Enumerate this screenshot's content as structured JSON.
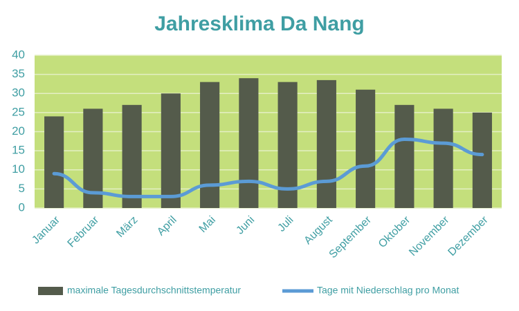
{
  "chart_data": {
    "type": "bar",
    "title": "Jahresklima Da Nang",
    "categories": [
      "Januar",
      "Februar",
      "März",
      "April",
      "Mai",
      "Juni",
      "Juli",
      "August",
      "September",
      "Oktober",
      "November",
      "Dezember"
    ],
    "series": [
      {
        "name": "maximale Tagesdurchschnittstemperatur",
        "type": "bar",
        "color": "#545b4b",
        "values": [
          24,
          26,
          27,
          30,
          33,
          34,
          33,
          33.5,
          31,
          27,
          26,
          25
        ]
      },
      {
        "name": "Tage mit Niederschlag pro Monat",
        "type": "line",
        "color": "#5b9bd5",
        "values": [
          9,
          4,
          3,
          3,
          6,
          7,
          5,
          7,
          11,
          18,
          17,
          14
        ]
      }
    ],
    "ylim": [
      0,
      40
    ],
    "yticks": [
      0,
      5,
      10,
      15,
      20,
      25,
      30,
      35,
      40
    ],
    "grid": true,
    "plot_background": "#c4df7c",
    "legend": "bottom"
  }
}
